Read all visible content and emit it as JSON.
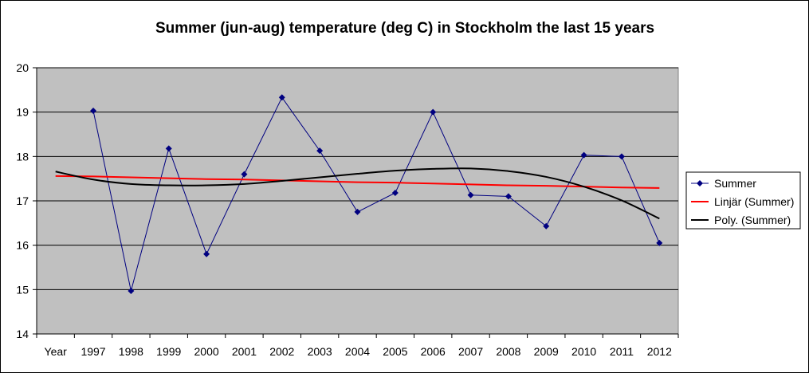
{
  "chart_data": {
    "type": "line",
    "title": "Summer (jun-aug) temperature (deg C) in Stockholm the last 15 years",
    "categories": [
      "Year",
      "1997",
      "1998",
      "1999",
      "2000",
      "2001",
      "2002",
      "2003",
      "2004",
      "2005",
      "2006",
      "2007",
      "2008",
      "2009",
      "2010",
      "2011",
      "2012"
    ],
    "ylim": [
      14,
      20
    ],
    "yticks": [
      "14",
      "15",
      "16",
      "17",
      "18",
      "19",
      "20"
    ],
    "grid": true,
    "plot_background": "#c0c0c0",
    "legend_position": "right",
    "series": [
      {
        "name": "Summer",
        "color": "#000080",
        "marker": "diamond",
        "values": [
          null,
          19.03,
          14.97,
          18.18,
          15.8,
          17.6,
          19.33,
          18.13,
          16.75,
          17.18,
          19.0,
          17.13,
          17.1,
          16.43,
          18.03,
          18.0,
          16.05
        ]
      },
      {
        "name": "Linjär (Summer)",
        "color": "#ff0000",
        "trendline": "linear",
        "values": [
          17.56,
          17.55,
          17.53,
          17.51,
          17.49,
          17.48,
          17.46,
          17.44,
          17.42,
          17.41,
          17.39,
          17.37,
          17.35,
          17.34,
          17.32,
          17.3,
          17.29
        ]
      },
      {
        "name": "Poly. (Summer)",
        "color": "#000000",
        "trendline": "polynomial",
        "values": [
          17.66,
          17.48,
          17.38,
          17.35,
          17.35,
          17.38,
          17.45,
          17.53,
          17.61,
          17.68,
          17.72,
          17.73,
          17.67,
          17.54,
          17.32,
          17.01,
          16.6
        ]
      }
    ]
  }
}
